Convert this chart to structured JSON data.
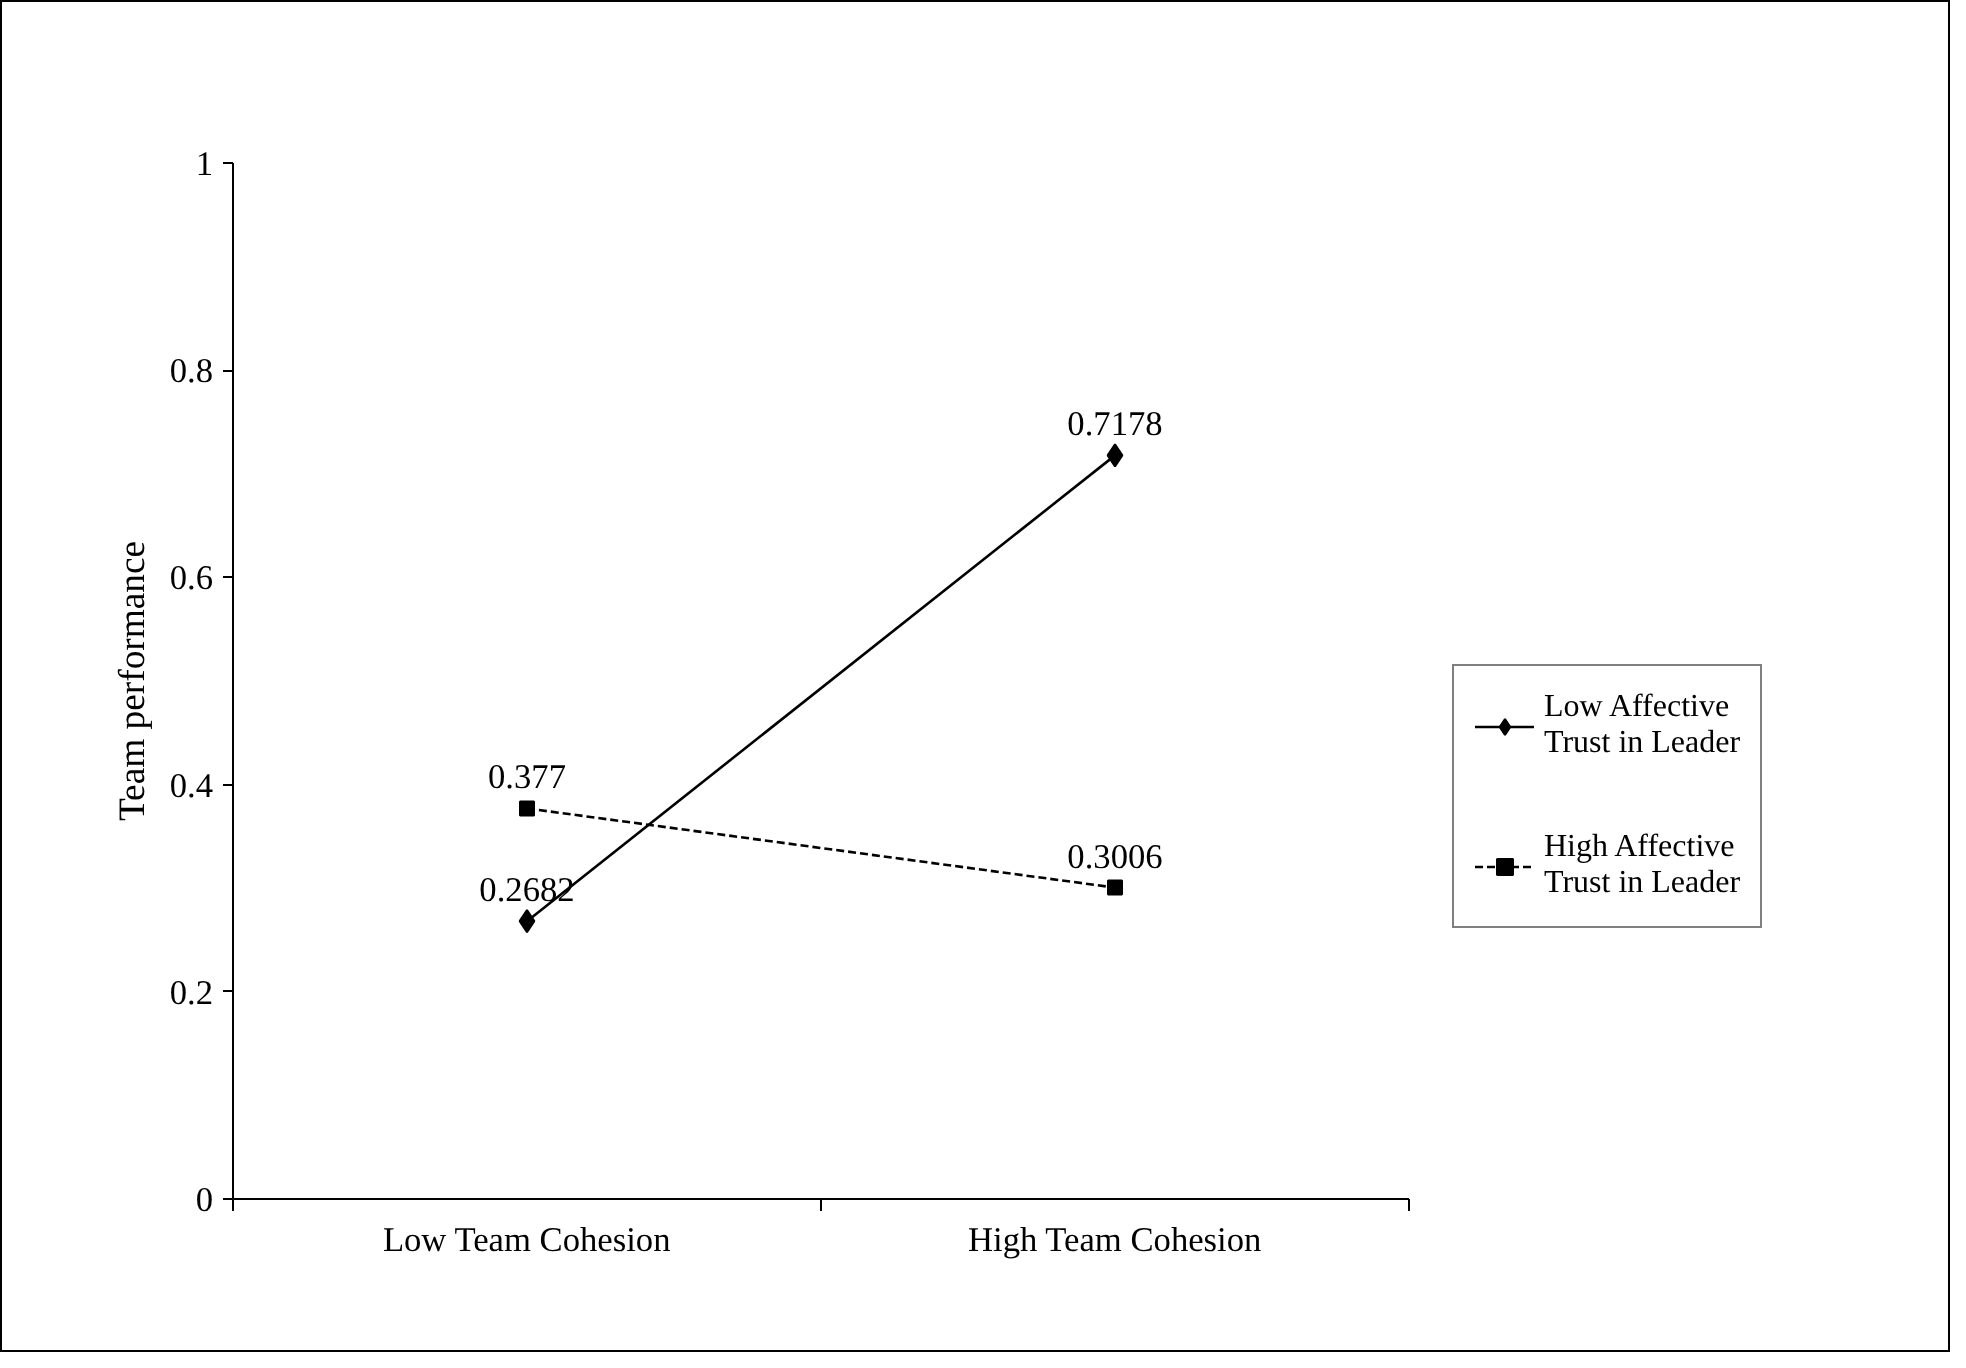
{
  "chart_data": {
    "type": "line",
    "ylabel": "Team performance",
    "categories": [
      "Low Team Cohesion",
      "High Team Cohesion"
    ],
    "series": [
      {
        "name": "Low Affective Trust in Leader",
        "color": "#000000",
        "values": [
          0.2682,
          0.7178
        ],
        "marker": "diamond",
        "line_style": "solid"
      },
      {
        "name": "High Affective Trust in Leader",
        "color": "#000000",
        "values": [
          0.377,
          0.3006
        ],
        "marker": "square",
        "line_style": "dashed"
      }
    ],
    "ylim": [
      0,
      1
    ],
    "yticks": [
      0,
      0.2,
      0.4,
      0.6,
      0.8,
      1
    ],
    "grid": false,
    "legend": "right",
    "data_labels": true
  }
}
